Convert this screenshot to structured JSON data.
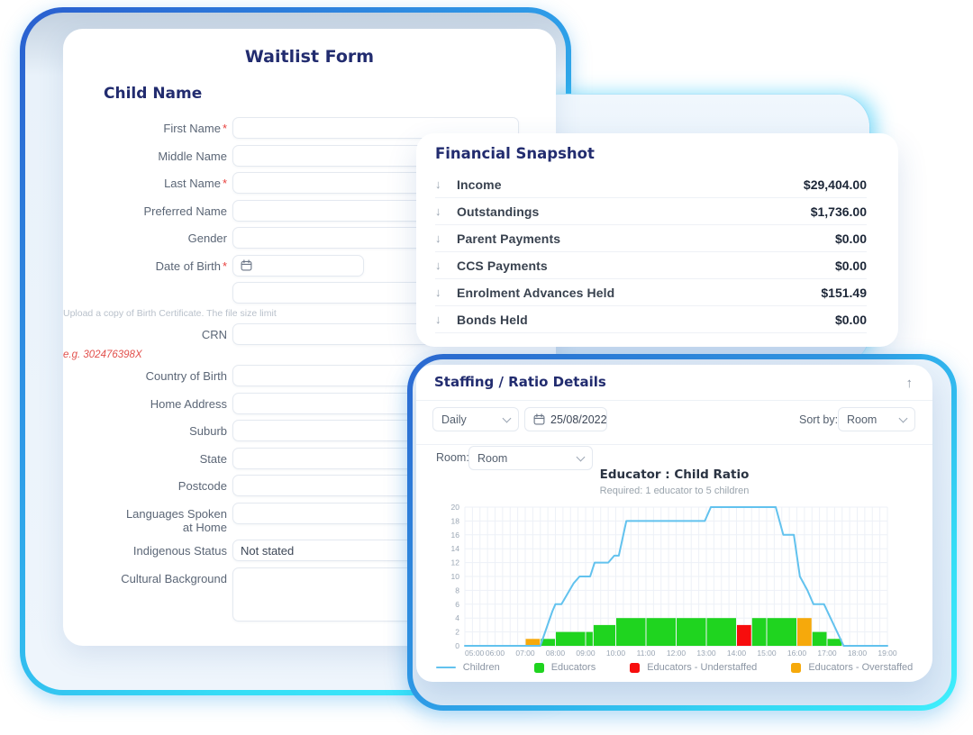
{
  "form": {
    "title": "Waitlist Form",
    "section": "Child Name",
    "required_marker": "*",
    "fields": [
      {
        "name": "first-name",
        "label": "First Name",
        "required": true,
        "type": "text"
      },
      {
        "name": "middle-name",
        "label": "Middle Name",
        "type": "text"
      },
      {
        "name": "last-name",
        "label": "Last Name",
        "required": true,
        "type": "text"
      },
      {
        "name": "preferred-name",
        "label": "Preferred Name",
        "type": "text"
      },
      {
        "name": "gender",
        "label": "Gender",
        "type": "text"
      },
      {
        "name": "date-of-birth",
        "label": "Date of Birth",
        "required": true,
        "type": "date"
      },
      {
        "name": "birth-certificate",
        "label": "",
        "type": "text",
        "helper": "Upload a copy of Birth Certificate. The file size limit"
      },
      {
        "name": "crn",
        "label": "CRN",
        "type": "text",
        "hint": "e.g. 302476398X"
      },
      {
        "name": "country-of-birth",
        "label": "Country of Birth",
        "type": "text"
      },
      {
        "name": "home-address",
        "label": "Home Address",
        "type": "text"
      },
      {
        "name": "suburb",
        "label": "Suburb",
        "type": "text"
      },
      {
        "name": "state",
        "label": "State",
        "type": "text"
      },
      {
        "name": "postcode",
        "label": "Postcode",
        "type": "text"
      },
      {
        "name": "languages-spoken-at-home",
        "label": "Languages Spoken at Home",
        "type": "text",
        "wrap": true
      },
      {
        "name": "indigenous-status",
        "label": "Indigenous Status",
        "type": "select",
        "value": "Not stated"
      },
      {
        "name": "cultural-background",
        "label": "Cultural Background",
        "type": "textarea"
      }
    ]
  },
  "financial": {
    "title": "Financial Snapshot",
    "rows": [
      {
        "label": "Income",
        "value": "$29,404.00"
      },
      {
        "label": "Outstandings",
        "value": "$1,736.00"
      },
      {
        "label": "Parent Payments",
        "value": "$0.00"
      },
      {
        "label": "CCS Payments",
        "value": "$0.00"
      },
      {
        "label": "Enrolment Advances Held",
        "value": "$151.49"
      },
      {
        "label": "Bonds Held",
        "value": "$0.00"
      }
    ]
  },
  "staffing": {
    "title": "Staffing / Ratio Details",
    "period_select": "Daily",
    "date": "25/08/2022",
    "sort_by_label": "Sort by:",
    "sort_by_value": "Room",
    "room_label": "Room:",
    "room_value": "Room"
  },
  "icons": {
    "row_expand_arrow": "↓",
    "collapse_panel_arrow": "↑"
  },
  "chart_data": {
    "type": "line+bar",
    "title": "Educator : Child Ratio",
    "subtitle": "Required: 1 educator to 5 children",
    "xlim": [
      5,
      19
    ],
    "ylim": [
      0,
      20
    ],
    "grid": true,
    "x_tick_labels": [
      "05:00",
      "06:00",
      "07:00",
      "08:00",
      "09:00",
      "10:00",
      "11:00",
      "12:00",
      "13:00",
      "14:00",
      "15:00",
      "16:00",
      "17:00",
      "18:00",
      "19:00"
    ],
    "y_ticks": [
      0,
      2,
      4,
      6,
      8,
      10,
      12,
      14,
      16,
      18,
      20
    ],
    "colors": {
      "children": "#62c2ee",
      "ok": "#1fd41f",
      "understaffed": "#f70d0d",
      "overstaffed": "#f6a90b"
    },
    "series": [
      {
        "name": "Children",
        "type": "line",
        "color_key": "children",
        "points": [
          [
            5,
            0
          ],
          [
            7.5,
            0
          ],
          [
            7.7,
            2.5
          ],
          [
            7.9,
            5
          ],
          [
            8.0,
            6
          ],
          [
            8.2,
            6
          ],
          [
            8.4,
            7.5
          ],
          [
            8.6,
            9
          ],
          [
            8.8,
            10
          ],
          [
            9.15,
            10
          ],
          [
            9.3,
            12
          ],
          [
            9.75,
            12
          ],
          [
            9.95,
            13
          ],
          [
            10.1,
            13
          ],
          [
            10.35,
            18
          ],
          [
            12.95,
            18
          ],
          [
            13.15,
            20
          ],
          [
            15.3,
            20
          ],
          [
            15.55,
            16
          ],
          [
            15.9,
            16
          ],
          [
            16.1,
            10
          ],
          [
            16.35,
            8
          ],
          [
            16.55,
            6
          ],
          [
            16.9,
            6
          ],
          [
            17.55,
            0
          ],
          [
            19,
            0
          ]
        ]
      },
      {
        "name": "Educators",
        "type": "bar",
        "segments": [
          {
            "from": 7.0,
            "to": 7.5,
            "value": 1,
            "status": "overstaffed"
          },
          {
            "from": 7.5,
            "to": 8.0,
            "value": 1,
            "status": "ok"
          },
          {
            "from": 8.0,
            "to": 9.0,
            "value": 2,
            "status": "ok"
          },
          {
            "from": 9.0,
            "to": 9.25,
            "value": 2,
            "status": "ok"
          },
          {
            "from": 9.25,
            "to": 10.0,
            "value": 3,
            "status": "ok"
          },
          {
            "from": 10.0,
            "to": 11.0,
            "value": 4,
            "status": "ok"
          },
          {
            "from": 11.0,
            "to": 12.0,
            "value": 4,
            "status": "ok"
          },
          {
            "from": 12.0,
            "to": 13.0,
            "value": 4,
            "status": "ok"
          },
          {
            "from": 13.0,
            "to": 14.0,
            "value": 4,
            "status": "ok"
          },
          {
            "from": 14.0,
            "to": 14.5,
            "value": 3,
            "status": "understaffed"
          },
          {
            "from": 14.5,
            "to": 15.0,
            "value": 4,
            "status": "ok"
          },
          {
            "from": 15.0,
            "to": 16.0,
            "value": 4,
            "status": "ok"
          },
          {
            "from": 16.0,
            "to": 16.5,
            "value": 4,
            "status": "overstaffed"
          },
          {
            "from": 16.5,
            "to": 17.0,
            "value": 2,
            "status": "ok"
          },
          {
            "from": 17.0,
            "to": 17.5,
            "value": 1,
            "status": "ok"
          }
        ]
      }
    ],
    "legend": [
      {
        "label": "Children",
        "swatch": "line",
        "color_key": "children"
      },
      {
        "label": "Educators",
        "swatch": "square",
        "color_key": "ok"
      },
      {
        "label": "Educators - Understaffed",
        "swatch": "square",
        "color_key": "understaffed"
      },
      {
        "label": "Educators - Overstaffed",
        "swatch": "square",
        "color_key": "overstaffed"
      }
    ]
  }
}
